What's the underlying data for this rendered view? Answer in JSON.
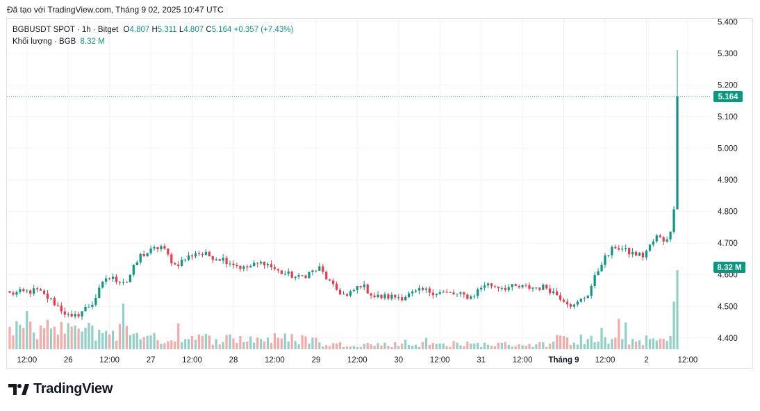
{
  "caption": "Đã tạo với TradingView.com, Tháng 9 02, 2025 10:47 UTC",
  "legend": {
    "symbol": "BGBUSDT SPOT · 1h · Bitget",
    "o_label": "O",
    "o_value": "4.807",
    "h_label": "H",
    "h_value": "5.311",
    "l_label": "L",
    "l_value": "4.807",
    "c_label": "C",
    "c_value": "5.164",
    "change": "+0.357 (+7.43%)",
    "volume_label": "Khối lượng · BGB",
    "volume_value": "8.32 M"
  },
  "brand": "TradingView",
  "colors": {
    "up": "#089981",
    "down": "#f23645",
    "up_vol": "#8fd1c6",
    "down_vol": "#f7a9a7",
    "grid": "#f0f3fa"
  },
  "chart_data": {
    "type": "candlestick",
    "symbol": "BGBUSDT",
    "exchange": "Bitget",
    "interval": "1h",
    "ylim": [
      4.36,
      5.41
    ],
    "y_ticks": [
      "5.400",
      "5.300",
      "5.200",
      "5.100",
      "5.000",
      "4.900",
      "4.800",
      "4.700",
      "4.600",
      "4.500",
      "4.400"
    ],
    "x_ticks": [
      {
        "label": "12:00",
        "bar": 5
      },
      {
        "label": "26",
        "bar": 17
      },
      {
        "label": "12:00",
        "bar": 29
      },
      {
        "label": "27",
        "bar": 41
      },
      {
        "label": "12:00",
        "bar": 53
      },
      {
        "label": "28",
        "bar": 65
      },
      {
        "label": "12:00",
        "bar": 77
      },
      {
        "label": "29",
        "bar": 89
      },
      {
        "label": "12:00",
        "bar": 101
      },
      {
        "label": "30",
        "bar": 113
      },
      {
        "label": "12:00",
        "bar": 125
      },
      {
        "label": "31",
        "bar": 137
      },
      {
        "label": "12:00",
        "bar": 149
      },
      {
        "label": "Tháng 9",
        "bar": 161
      },
      {
        "label": "12:00",
        "bar": 173
      },
      {
        "label": "2",
        "bar": 185
      },
      {
        "label": "12:00",
        "bar": 197
      }
    ],
    "close_waypoints": [
      [
        0,
        4.54
      ],
      [
        8,
        4.55
      ],
      [
        12,
        4.52
      ],
      [
        16,
        4.48
      ],
      [
        18,
        4.46
      ],
      [
        24,
        4.51
      ],
      [
        28,
        4.59
      ],
      [
        34,
        4.58
      ],
      [
        38,
        4.66
      ],
      [
        44,
        4.69
      ],
      [
        48,
        4.63
      ],
      [
        54,
        4.67
      ],
      [
        62,
        4.65
      ],
      [
        68,
        4.62
      ],
      [
        74,
        4.64
      ],
      [
        78,
        4.61
      ],
      [
        84,
        4.59
      ],
      [
        90,
        4.62
      ],
      [
        94,
        4.56
      ],
      [
        98,
        4.53
      ],
      [
        102,
        4.57
      ],
      [
        106,
        4.53
      ],
      [
        114,
        4.53
      ],
      [
        120,
        4.55
      ],
      [
        128,
        4.54
      ],
      [
        134,
        4.53
      ],
      [
        138,
        4.57
      ],
      [
        144,
        4.56
      ],
      [
        156,
        4.56
      ],
      [
        160,
        4.53
      ],
      [
        164,
        4.5
      ],
      [
        168,
        4.54
      ],
      [
        170,
        4.59
      ],
      [
        172,
        4.64
      ],
      [
        176,
        4.69
      ],
      [
        180,
        4.67
      ],
      [
        184,
        4.66
      ],
      [
        188,
        4.72
      ],
      [
        190,
        4.71
      ],
      [
        192,
        4.73
      ],
      [
        193,
        4.807
      ]
    ],
    "last_candle": {
      "open": 4.807,
      "high": 5.311,
      "low": 4.807,
      "close": 5.164
    },
    "last_price": "5.164",
    "last_volume": "8.32 M",
    "volume_ylim": [
      0,
      10.5
    ]
  }
}
